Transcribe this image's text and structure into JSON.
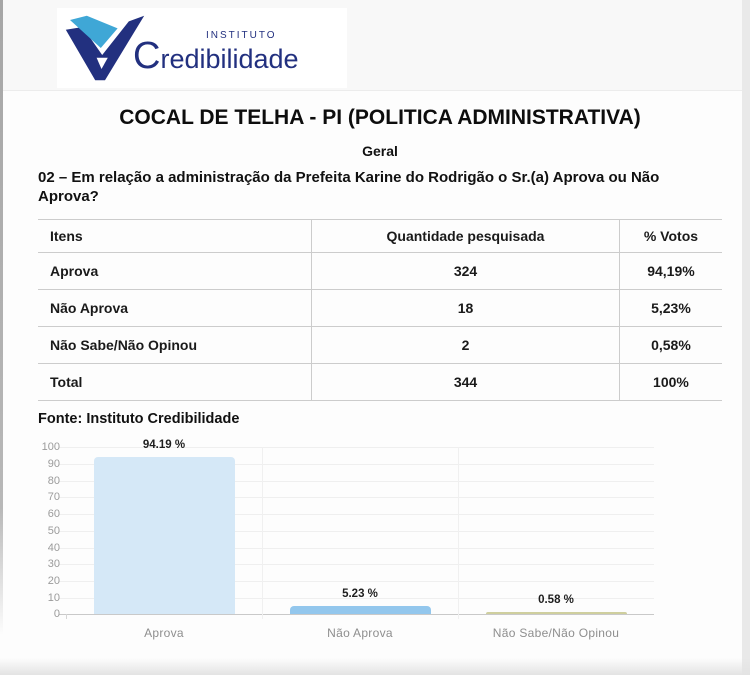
{
  "logo": {
    "institute_label": "INSTITUTO",
    "name": "Credibilidade",
    "colors": {
      "navy": "#22307f",
      "light_blue": "#3fa7d6"
    }
  },
  "header": {
    "title": "COCAL DE TELHA - PI (POLITICA ADMINISTRATIVA)",
    "subtitle": "Geral",
    "question": "02 – Em relação a administração da Prefeita Karine do Rodrigão o Sr.(a) Aprova ou Não Aprova?"
  },
  "table": {
    "columns": [
      "Itens",
      "Quantidade pesquisada",
      "% Votos"
    ],
    "rows": [
      [
        "Aprova",
        "324",
        "94,19%"
      ],
      [
        "Não Aprova",
        "18",
        "5,23%"
      ],
      [
        "Não Sabe/Não Opinou",
        "2",
        "0,58%"
      ],
      [
        "Total",
        "344",
        "100%"
      ]
    ]
  },
  "source_note": "Fonte: Instituto Credibilidade",
  "chart_data": {
    "type": "bar",
    "categories": [
      "Aprova",
      "Não Aprova",
      "Não Sabe/Não Opinou"
    ],
    "values": [
      94.19,
      5.23,
      0.58
    ],
    "value_labels": [
      "94.19 %",
      "5.23 %",
      "0.58 %"
    ],
    "bar_colors": [
      "#d5e8f7",
      "#93c7ed",
      "#cfcf9e"
    ],
    "title": "",
    "xlabel": "",
    "ylabel": "",
    "ylim": [
      0,
      100
    ],
    "ytick_step": 10,
    "grid": true,
    "legend": false
  }
}
